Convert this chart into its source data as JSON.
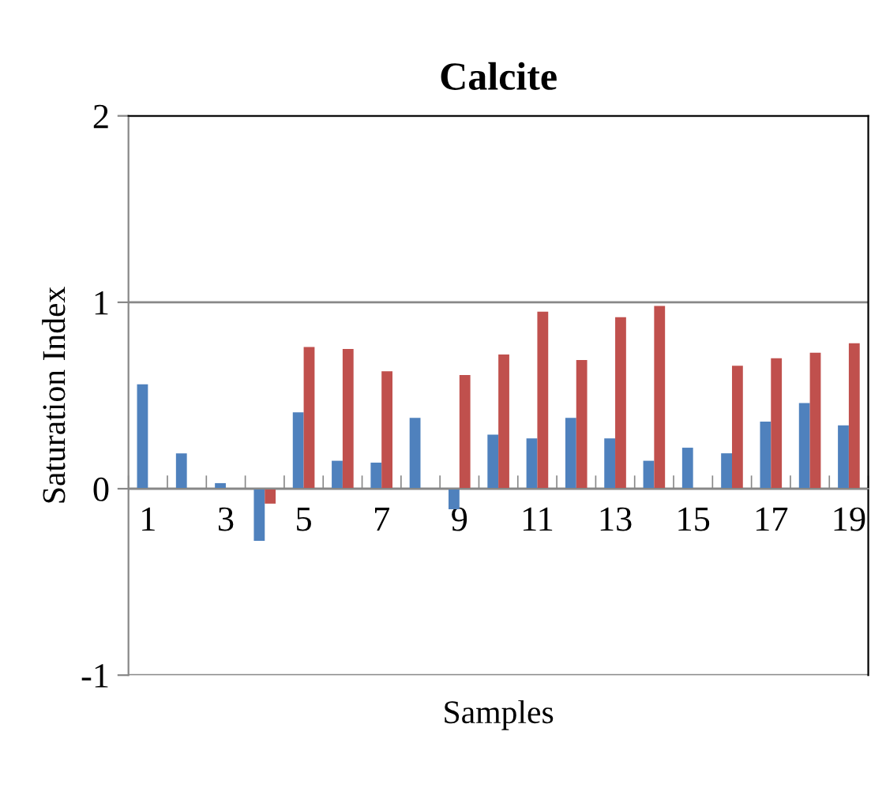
{
  "chart_data": {
    "type": "bar",
    "title": "Calcite",
    "xlabel": "Samples",
    "ylabel": "Saturation Index",
    "categories": [
      "1",
      null,
      "3",
      null,
      "5",
      null,
      "7",
      null,
      "9",
      null,
      "11",
      null,
      "13",
      null,
      "15",
      null,
      "17",
      null,
      "19"
    ],
    "series": [
      {
        "color": "#4f81bd",
        "values": [
          0.56,
          0.19,
          0.03,
          -0.28,
          0.41,
          0.15,
          0.14,
          0.38,
          -0.11,
          0.29,
          0.27,
          0.38,
          0.27,
          0.15,
          0.22,
          0.19,
          0.36,
          0.46,
          0.34
        ]
      },
      {
        "color": "#c0504d",
        "values": [
          null,
          null,
          null,
          -0.08,
          0.76,
          0.75,
          0.63,
          null,
          0.61,
          0.72,
          0.95,
          0.69,
          0.92,
          0.98,
          null,
          0.66,
          0.7,
          0.73,
          0.78
        ]
      }
    ],
    "ylim": [
      -1,
      2
    ],
    "yticks": [
      -1,
      0,
      1,
      2
    ],
    "grid": "y",
    "legend": false
  }
}
